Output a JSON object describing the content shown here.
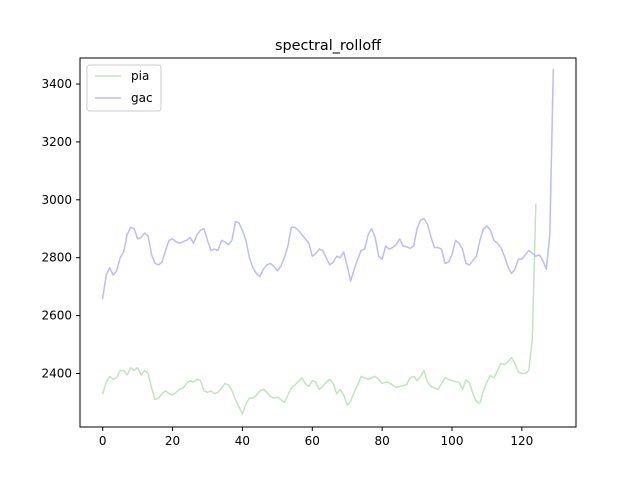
{
  "chart_data": {
    "type": "line",
    "title": "spectral_rolloff",
    "xlabel": "",
    "ylabel": "",
    "xlim": [
      -6.5,
      135.5
    ],
    "ylim": [
      2215,
      3490
    ],
    "xticks": [
      0,
      20,
      40,
      60,
      80,
      100,
      120
    ],
    "yticks": [
      2400,
      2600,
      2800,
      3000,
      3200,
      3400
    ],
    "grid": false,
    "legend_position": "upper left",
    "series": [
      {
        "name": "pia",
        "color": "#c2e3bf",
        "values": [
          2330,
          2370,
          2390,
          2380,
          2385,
          2410,
          2410,
          2395,
          2420,
          2410,
          2420,
          2395,
          2410,
          2400,
          2350,
          2310,
          2315,
          2330,
          2340,
          2330,
          2325,
          2335,
          2345,
          2350,
          2365,
          2375,
          2370,
          2380,
          2375,
          2340,
          2335,
          2340,
          2330,
          2335,
          2350,
          2365,
          2360,
          2340,
          2310,
          2285,
          2260,
          2295,
          2315,
          2315,
          2325,
          2340,
          2345,
          2335,
          2320,
          2315,
          2318,
          2310,
          2300,
          2325,
          2350,
          2360,
          2372,
          2385,
          2365,
          2355,
          2375,
          2370,
          2345,
          2355,
          2370,
          2380,
          2365,
          2330,
          2345,
          2325,
          2290,
          2305,
          2335,
          2360,
          2390,
          2385,
          2380,
          2385,
          2390,
          2380,
          2365,
          2370,
          2368,
          2360,
          2352,
          2355,
          2358,
          2362,
          2385,
          2390,
          2375,
          2390,
          2410,
          2370,
          2355,
          2350,
          2345,
          2365,
          2385,
          2380,
          2375,
          2372,
          2370,
          2345,
          2378,
          2368,
          2330,
          2302,
          2298,
          2340,
          2370,
          2393,
          2385,
          2410,
          2435,
          2430,
          2440,
          2455,
          2435,
          2405,
          2400,
          2400,
          2410,
          2520,
          2985
        ],
        "overshoot_last": 2985
      },
      {
        "name": "gac",
        "color": "#bbbbff",
        "values": [
          2660,
          2740,
          2765,
          2740,
          2755,
          2800,
          2820,
          2880,
          2905,
          2900,
          2865,
          2870,
          2885,
          2875,
          2810,
          2780,
          2775,
          2785,
          2825,
          2860,
          2865,
          2855,
          2850,
          2855,
          2860,
          2870,
          2850,
          2880,
          2895,
          2900,
          2860,
          2825,
          2830,
          2825,
          2860,
          2855,
          2845,
          2860,
          2925,
          2920,
          2895,
          2860,
          2800,
          2765,
          2745,
          2735,
          2760,
          2775,
          2780,
          2770,
          2755,
          2770,
          2800,
          2840,
          2905,
          2905,
          2895,
          2880,
          2865,
          2850,
          2805,
          2815,
          2830,
          2825,
          2800,
          2775,
          2785,
          2805,
          2800,
          2820,
          2770,
          2720,
          2760,
          2795,
          2825,
          2830,
          2880,
          2900,
          2870,
          2805,
          2795,
          2840,
          2830,
          2835,
          2845,
          2865,
          2840,
          2838,
          2832,
          2840,
          2900,
          2930,
          2935,
          2915,
          2870,
          2835,
          2835,
          2830,
          2780,
          2785,
          2810,
          2860,
          2850,
          2830,
          2780,
          2775,
          2790,
          2805,
          2860,
          2900,
          2910,
          2895,
          2860,
          2850,
          2835,
          2805,
          2770,
          2745,
          2760,
          2795,
          2795,
          2810,
          2825,
          2815,
          2805,
          2810,
          2790,
          2760,
          2880,
          3450
        ]
      }
    ]
  }
}
